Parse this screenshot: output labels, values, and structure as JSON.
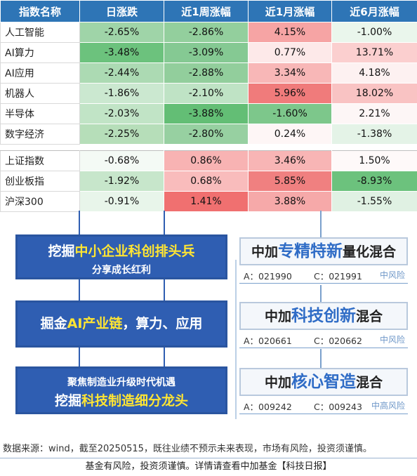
{
  "table": {
    "headers": [
      "指数名称",
      "日涨跌",
      "近1周涨幅",
      "近1月涨幅",
      "近6月涨幅"
    ],
    "sector_rows": [
      {
        "name": "人工智能",
        "cells": [
          {
            "v": "-2.65%",
            "c": "#9fd4a8"
          },
          {
            "v": "-2.86%",
            "c": "#93cf9d"
          },
          {
            "v": "4.15%",
            "c": "#f6a4a4"
          },
          {
            "v": "-1.00%",
            "c": "#eaf6ec"
          }
        ]
      },
      {
        "name": "AI算力",
        "cells": [
          {
            "v": "-3.48%",
            "c": "#6cc27d"
          },
          {
            "v": "-3.09%",
            "c": "#85c993"
          },
          {
            "v": "0.77%",
            "c": "#fde9e9"
          },
          {
            "v": "13.71%",
            "c": "#fbcfcf"
          }
        ]
      },
      {
        "name": "AI应用",
        "cells": [
          {
            "v": "-2.44%",
            "c": "#acdab3"
          },
          {
            "v": "-2.88%",
            "c": "#92ce9c"
          },
          {
            "v": "3.34%",
            "c": "#f8b7b7"
          },
          {
            "v": "4.18%",
            "c": "#fdf1f1"
          }
        ]
      },
      {
        "name": "机器人",
        "cells": [
          {
            "v": "-1.86%",
            "c": "#cbe8d0"
          },
          {
            "v": "-2.10%",
            "c": "#bfe3c5"
          },
          {
            "v": "5.96%",
            "c": "#f07b7b"
          },
          {
            "v": "18.02%",
            "c": "#f9c3c3"
          }
        ]
      },
      {
        "name": "半导体",
        "cells": [
          {
            "v": "-2.03%",
            "c": "#c1e4c6"
          },
          {
            "v": "-3.88%",
            "c": "#63be75"
          },
          {
            "v": "-1.60%",
            "c": "#7dc78b"
          },
          {
            "v": "2.21%",
            "c": "#fdf6f6"
          }
        ]
      },
      {
        "name": "数字经济",
        "cells": [
          {
            "v": "-2.25%",
            "c": "#b6deb9"
          },
          {
            "v": "-2.80%",
            "c": "#97d0a1"
          },
          {
            "v": "0.24%",
            "c": "#fef6f6"
          },
          {
            "v": "-1.38%",
            "c": "#e4f3e7"
          }
        ]
      }
    ],
    "index_rows": [
      {
        "name": "上证指数",
        "cells": [
          {
            "v": "-0.68%",
            "c": "#f4faf5"
          },
          {
            "v": "0.86%",
            "c": "#f8b3b3"
          },
          {
            "v": "3.46%",
            "c": "#f8b5b5"
          },
          {
            "v": "1.50%",
            "c": "#fef9f9"
          }
        ]
      },
      {
        "name": "创业板指",
        "cells": [
          {
            "v": "-1.92%",
            "c": "#c7e6cb"
          },
          {
            "v": "0.68%",
            "c": "#f9bcbc"
          },
          {
            "v": "5.85%",
            "c": "#f08080"
          },
          {
            "v": "-8.93%",
            "c": "#6cc27d"
          }
        ]
      },
      {
        "name": "沪深300",
        "cells": [
          {
            "v": "-0.91%",
            "c": "#e8f5ea"
          },
          {
            "v": "1.41%",
            "c": "#f07070"
          },
          {
            "v": "3.88%",
            "c": "#f6a9a9"
          },
          {
            "v": "-1.55%",
            "c": "#e0f1e3"
          }
        ]
      }
    ]
  },
  "themes": [
    {
      "line1_prefix": "挖掘",
      "line1_highlight": "中小企业科创排头兵",
      "line2": "分享成长红利"
    },
    {
      "prefix": "掘金",
      "highlight": "AI产业链",
      "suffix": "，算力、应用"
    },
    {
      "line1": "聚焦制造业升级时代机遇",
      "line2_prefix": "挖掘",
      "line2_highlight": "科技制造细分龙头"
    }
  ],
  "funds": [
    {
      "pre": "中加",
      "highlight": "专精特新",
      "post": "量化混合",
      "a_code": "A：021990",
      "c_code": "C：021991",
      "risk": "中风险"
    },
    {
      "pre": "中加",
      "highlight": "科技创新",
      "post": "混合",
      "a_code": "A：020661",
      "c_code": "C：020662",
      "risk": "中风险"
    },
    {
      "pre": "中加",
      "highlight": "核心智造",
      "post": "混合",
      "a_code": "A：009242",
      "c_code": "C：009243",
      "risk": "中高风险"
    }
  ],
  "footer": {
    "source": "数据来源：wind，截至20250515，既往业绩不预示未来表现，市场有风险，投资须谨慎。",
    "disclaimer": "基金有风险，投资须谨慎。详情请查看中加基金【科技日报】"
  },
  "colors": {
    "header_blue": "#2e75b6",
    "box_blue": "#2f5eb2",
    "highlight_yellow": "#ffe533",
    "fund_blue": "#2f6cc6"
  }
}
